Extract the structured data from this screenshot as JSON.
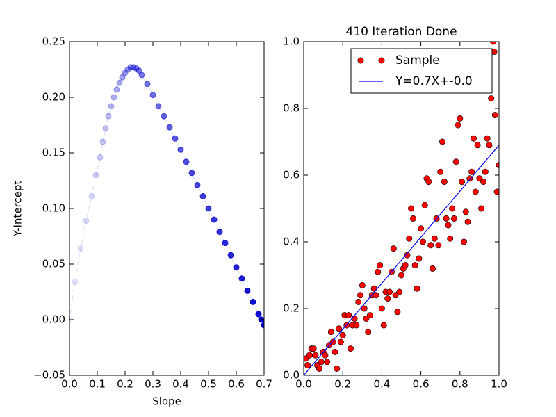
{
  "chart_data": [
    {
      "type": "line",
      "xlabel": "Slope",
      "ylabel": "Y-Intercept",
      "color": "#0000cc",
      "xlim": [
        0,
        0.7
      ],
      "ylim": [
        -0.05,
        0.25
      ],
      "xticks": [
        {
          "value": 0,
          "label": "0.0"
        },
        0.1,
        0.2,
        0.3,
        0.4,
        0.5,
        0.6,
        0.7
      ],
      "yticks": [
        {
          "value": -0.05,
          "label": "−0.05"
        },
        {
          "value": 0,
          "label": "0.00"
        },
        0.05,
        {
          "value": 0.1,
          "label": "0.10"
        },
        0.15,
        {
          "value": 0.2,
          "label": "0.20"
        },
        0.25
      ],
      "x": [
        0,
        0.02,
        0.04,
        0.06,
        0.08,
        0.095,
        0.11,
        0.12,
        0.13,
        0.14,
        0.15,
        0.16,
        0.17,
        0.18,
        0.19,
        0.2,
        0.21,
        0.22,
        0.23,
        0.24,
        0.25,
        0.26,
        0.28,
        0.3,
        0.32,
        0.34,
        0.36,
        0.38,
        0.4,
        0.42,
        0.44,
        0.46,
        0.48,
        0.5,
        0.52,
        0.54,
        0.56,
        0.58,
        0.6,
        0.62,
        0.64,
        0.66,
        0.68,
        0.69,
        0.7
      ],
      "values": [
        0,
        0.034,
        0.064,
        0.089,
        0.111,
        0.13,
        0.146,
        0.16,
        0.172,
        0.183,
        0.192,
        0.2,
        0.207,
        0.213,
        0.218,
        0.222,
        0.225,
        0.227,
        0.227,
        0.226,
        0.224,
        0.22,
        0.212,
        0.202,
        0.192,
        0.183,
        0.173,
        0.163,
        0.153,
        0.142,
        0.132,
        0.121,
        0.111,
        0.1,
        0.09,
        0.079,
        0.069,
        0.058,
        0.047,
        0.037,
        0.026,
        0.016,
        0.005,
        0,
        -0.005
      ]
    },
    {
      "type": "scatter",
      "title": "410 Iteration Done",
      "legend": "upper right",
      "xlim": [
        0,
        1
      ],
      "ylim": [
        0,
        1
      ],
      "xticks": [
        {
          "value": 0,
          "label": "0.0"
        },
        0.2,
        0.4,
        0.6,
        0.8,
        {
          "value": 1,
          "label": "1.0"
        }
      ],
      "yticks": [
        {
          "value": 0,
          "label": "0.0"
        },
        0.2,
        0.4,
        0.6,
        0.8,
        {
          "value": 1,
          "label": "1.0"
        }
      ],
      "series": [
        {
          "name": "Sample",
          "type": "scatter",
          "color": "#ff0000",
          "x": [
            0.01,
            0.02,
            0.03,
            0.04,
            0.05,
            0.06,
            0.07,
            0.08,
            0.09,
            0.1,
            0.11,
            0.12,
            0.13,
            0.14,
            0.15,
            0.16,
            0.17,
            0.18,
            0.19,
            0.2,
            0.21,
            0.22,
            0.23,
            0.24,
            0.25,
            0.26,
            0.27,
            0.28,
            0.29,
            0.3,
            0.31,
            0.32,
            0.33,
            0.34,
            0.35,
            0.36,
            0.37,
            0.38,
            0.39,
            0.4,
            0.41,
            0.42,
            0.43,
            0.44,
            0.45,
            0.46,
            0.47,
            0.48,
            0.49,
            0.5,
            0.51,
            0.52,
            0.53,
            0.54,
            0.55,
            0.56,
            0.57,
            0.58,
            0.59,
            0.6,
            0.61,
            0.62,
            0.63,
            0.64,
            0.65,
            0.66,
            0.67,
            0.68,
            0.69,
            0.7,
            0.71,
            0.72,
            0.73,
            0.74,
            0.75,
            0.76,
            0.77,
            0.78,
            0.79,
            0.8,
            0.81,
            0.82,
            0.83,
            0.84,
            0.85,
            0.86,
            0.87,
            0.88,
            0.89,
            0.9,
            0.91,
            0.92,
            0.93,
            0.94,
            0.95,
            0.96,
            0.97,
            0.975,
            0.98,
            0.99,
            1.0
          ],
          "values": [
            0.05,
            0.03,
            0.06,
            0.08,
            0.08,
            0.06,
            0.03,
            0.02,
            0.04,
            0.07,
            0.06,
            0.04,
            0.09,
            0.13,
            0.1,
            0.07,
            0.02,
            0.14,
            0.1,
            0.12,
            0.18,
            0.15,
            0.18,
            0.08,
            0.15,
            0.17,
            0.15,
            0.22,
            0.24,
            0.27,
            0.2,
            0.17,
            0.13,
            0.18,
            0.24,
            0.26,
            0.24,
            0.31,
            0.33,
            0.2,
            0.15,
            0.25,
            0.23,
            0.25,
            0.31,
            0.38,
            0.24,
            0.19,
            0.25,
            0.3,
            0.32,
            0.33,
            0.36,
            0.41,
            0.5,
            0.47,
            0.33,
            0.26,
            0.35,
            0.44,
            0.4,
            0.51,
            0.59,
            0.58,
            0.39,
            0.32,
            0.41,
            0.47,
            0.39,
            0.61,
            0.7,
            0.58,
            0.47,
            0.45,
            0.41,
            0.5,
            0.47,
            0.64,
            0.75,
            0.77,
            0.58,
            0.4,
            0.49,
            0.46,
            0.59,
            0.61,
            0.71,
            0.55,
            0.69,
            0.59,
            0.5,
            0.58,
            0.61,
            0.71,
            0.69,
            0.83,
            1.0,
            0.97,
            0.78,
            0.55,
            0.63
          ]
        },
        {
          "name": "Y=0.7X+-0.0",
          "type": "line",
          "color": "#0000ff",
          "x": [
            0,
            1
          ],
          "values": [
            0,
            0.69
          ]
        }
      ]
    }
  ]
}
